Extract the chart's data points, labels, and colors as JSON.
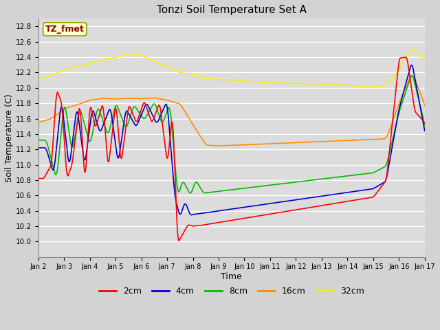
{
  "title": "Tonzi Soil Temperature Set A",
  "xlabel": "Time",
  "ylabel": "Soil Temperature (C)",
  "annotation": "TZ_fmet",
  "annotation_color": "#8B0000",
  "annotation_bg": "#FFFFCC",
  "annotation_edge": "#999900",
  "ylim": [
    9.8,
    12.9
  ],
  "yticks": [
    10.0,
    10.2,
    10.4,
    10.6,
    10.8,
    11.0,
    11.2,
    11.4,
    11.6,
    11.8,
    12.0,
    12.2,
    12.4,
    12.6,
    12.8
  ],
  "xtick_labels": [
    "Jan 2",
    "Jan 3",
    "Jan 4",
    "Jan 5",
    "Jan 6",
    "Jan 7",
    "Jan 8",
    "Jan 9",
    "Jan 10",
    "Jan 11",
    "Jan 12",
    "Jan 13",
    "Jan 14",
    "Jan 15",
    "Jan 16",
    "Jan 17"
  ],
  "colors": {
    "2cm": "#FF0000",
    "4cm": "#0000CC",
    "8cm": "#00BB00",
    "16cm": "#FF8C00",
    "32cm": "#FFEE00"
  },
  "legend_labels": [
    "2cm",
    "4cm",
    "8cm",
    "16cm",
    "32cm"
  ],
  "plot_bg": "#DCDCDC",
  "fig_bg": "#D3D3D3",
  "grid_color": "#FFFFFF",
  "linewidth": 1.2
}
